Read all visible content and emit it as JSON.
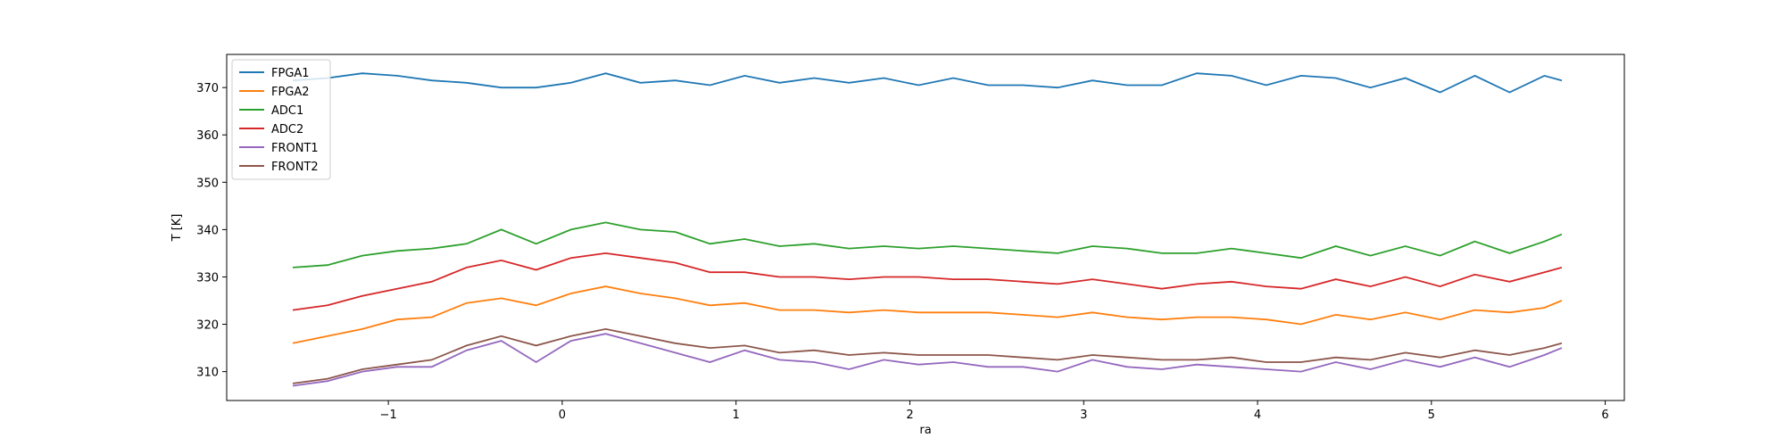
{
  "chart_data": {
    "type": "line",
    "xlabel": "ra",
    "ylabel": "T [K]",
    "x": [
      -1.55,
      -1.35,
      -1.15,
      -0.95,
      -0.75,
      -0.55,
      -0.35,
      -0.15,
      0.05,
      0.25,
      0.45,
      0.65,
      0.85,
      1.05,
      1.25,
      1.45,
      1.65,
      1.85,
      2.05,
      2.25,
      2.45,
      2.65,
      2.85,
      3.05,
      3.25,
      3.45,
      3.65,
      3.85,
      4.05,
      4.25,
      4.45,
      4.65,
      4.85,
      5.05,
      5.25,
      5.45,
      5.65,
      5.75
    ],
    "series": [
      {
        "name": "FPGA1",
        "color": "#1f77b4",
        "values": [
          371.5,
          372,
          373,
          372.5,
          371.5,
          371,
          370,
          370,
          371,
          373,
          371,
          371.5,
          370.5,
          372.5,
          371,
          372,
          371,
          372,
          370.5,
          372,
          370.5,
          370.5,
          370,
          371.5,
          370.5,
          370.5,
          373,
          372.5,
          370.5,
          372.5,
          372,
          370,
          372,
          369,
          372.5,
          369,
          372.5,
          371.5
        ]
      },
      {
        "name": "FPGA2",
        "color": "#ff7f0e",
        "values": [
          316,
          317.5,
          319,
          321,
          321.5,
          324.5,
          325.5,
          324,
          326.5,
          328,
          326.5,
          325.5,
          324,
          324.5,
          323,
          323,
          322.5,
          323,
          322.5,
          322.5,
          322.5,
          322,
          321.5,
          322.5,
          321.5,
          321,
          321.5,
          321.5,
          321,
          320,
          322,
          321,
          322.5,
          321,
          323,
          322.5,
          323.5,
          325
        ]
      },
      {
        "name": "ADC1",
        "color": "#2ca02c",
        "values": [
          332,
          332.5,
          334.5,
          335.5,
          336,
          337,
          340,
          337,
          340,
          341.5,
          340,
          339.5,
          337,
          338,
          336.5,
          337,
          336,
          336.5,
          336,
          336.5,
          336,
          335.5,
          335,
          336.5,
          336,
          335,
          335,
          336,
          335,
          334,
          336.5,
          334.5,
          336.5,
          334.5,
          337.5,
          335,
          337.5,
          339
        ]
      },
      {
        "name": "ADC2",
        "color": "#d62728",
        "values": [
          323,
          324,
          326,
          327.5,
          329,
          332,
          333.5,
          331.5,
          334,
          335,
          334,
          333,
          331,
          331,
          330,
          330,
          329.5,
          330,
          330,
          329.5,
          329.5,
          329,
          328.5,
          329.5,
          328.5,
          327.5,
          328.5,
          329,
          328,
          327.5,
          329.5,
          328,
          330,
          328,
          330.5,
          329,
          331,
          332
        ]
      },
      {
        "name": "FRONT1",
        "color": "#9467bd",
        "values": [
          307,
          308,
          310,
          311,
          311,
          314.5,
          316.5,
          312,
          316.5,
          318,
          316,
          314,
          312,
          314.5,
          312.5,
          312,
          310.5,
          312.5,
          311.5,
          312,
          311,
          311,
          310,
          312.5,
          311,
          310.5,
          311.5,
          311,
          310.5,
          310,
          312,
          310.5,
          312.5,
          311,
          313,
          311,
          313.5,
          315
        ]
      },
      {
        "name": "FRONT2",
        "color": "#8c564b",
        "values": [
          307.5,
          308.5,
          310.5,
          311.5,
          312.5,
          315.5,
          317.5,
          315.5,
          317.5,
          319,
          317.5,
          316,
          315,
          315.5,
          314,
          314.5,
          313.5,
          314,
          313.5,
          313.5,
          313.5,
          313,
          312.5,
          313.5,
          313,
          312.5,
          312.5,
          313,
          312,
          312,
          313,
          312.5,
          314,
          313,
          314.5,
          313.5,
          315,
          316
        ]
      }
    ],
    "xlim": [
      -1.93,
      6.11
    ],
    "ylim": [
      303.9,
      377.0
    ],
    "xticks": [
      {
        "value": -1,
        "label": "−1"
      },
      0,
      1,
      2,
      3,
      4,
      5,
      6
    ],
    "yticks": [
      310,
      320,
      330,
      340,
      350,
      360,
      370
    ],
    "grid": false,
    "legend": "upper left"
  }
}
